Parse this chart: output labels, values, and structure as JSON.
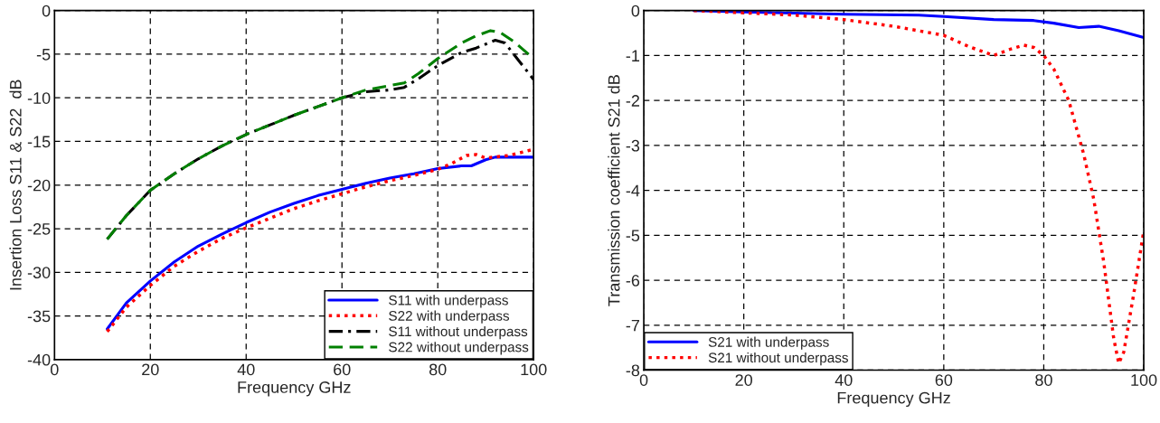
{
  "chart_data": [
    {
      "type": "line",
      "xlabel": "Frequency GHz",
      "ylabel": "Insertion Loss S11 & S22  dB",
      "xlim": [
        0,
        100
      ],
      "ylim": [
        -40,
        0
      ],
      "xticks": [
        0,
        20,
        40,
        60,
        80,
        100
      ],
      "yticks": [
        -40,
        -35,
        -30,
        -25,
        -20,
        -15,
        -10,
        -5,
        0
      ],
      "grid": true,
      "legend": "bottom right",
      "series": [
        {
          "name": "S11 with underpass",
          "color": "#0000ff",
          "line_style": "solid",
          "x": [
            11,
            15,
            20,
            25,
            30,
            35,
            40,
            45,
            50,
            55,
            60,
            65,
            70,
            75,
            80,
            85,
            87,
            90,
            92,
            100
          ],
          "values": [
            -36.5,
            -33.5,
            -31,
            -28.8,
            -27,
            -25.6,
            -24.3,
            -23.1,
            -22.1,
            -21.2,
            -20.5,
            -19.8,
            -19.2,
            -18.7,
            -18.1,
            -17.8,
            -17.8,
            -17.1,
            -16.8,
            -16.8
          ]
        },
        {
          "name": "S22 with underpass",
          "color": "#ff0000",
          "line_style": "dotted",
          "x": [
            11,
            15,
            20,
            25,
            30,
            35,
            40,
            45,
            50,
            55,
            60,
            65,
            70,
            75,
            80,
            83,
            86,
            88,
            90,
            95,
            100
          ],
          "values": [
            -36.8,
            -34,
            -31.5,
            -29.3,
            -27.6,
            -26.1,
            -24.9,
            -23.8,
            -22.7,
            -21.8,
            -21,
            -20.2,
            -19.5,
            -18.9,
            -18.2,
            -17.5,
            -16.6,
            -16.5,
            -16.9,
            -16.6,
            -15.9
          ]
        },
        {
          "name": "S11 without underpass",
          "color": "#000000",
          "line_style": "dashdot",
          "x": [
            11,
            15,
            20,
            25,
            30,
            35,
            40,
            45,
            50,
            55,
            60,
            65,
            70,
            73,
            76,
            80,
            85,
            88,
            92,
            94,
            97,
            100
          ],
          "values": [
            -26.2,
            -23.5,
            -20.6,
            -18.7,
            -17,
            -15.5,
            -14.2,
            -13.1,
            -12,
            -11,
            -10,
            -9.3,
            -9.1,
            -8.8,
            -7.8,
            -6.3,
            -4.8,
            -4.3,
            -3.4,
            -3.7,
            -5.8,
            -7.9
          ]
        },
        {
          "name": "S22 without underpass",
          "color": "#008000",
          "line_style": "dashed",
          "x": [
            11,
            15,
            20,
            25,
            30,
            35,
            40,
            45,
            50,
            55,
            60,
            65,
            70,
            73,
            76,
            80,
            85,
            88,
            91,
            93,
            96,
            100
          ],
          "values": [
            -26.2,
            -23.5,
            -20.6,
            -18.7,
            -17,
            -15.5,
            -14.2,
            -13.1,
            -12,
            -11,
            -10,
            -9.1,
            -8.6,
            -8.3,
            -7.2,
            -5.5,
            -3.7,
            -2.9,
            -2.3,
            -2.5,
            -3.6,
            -5.5
          ]
        }
      ]
    },
    {
      "type": "line",
      "xlabel": "Frequency GHz",
      "ylabel": "Transmission coefficient S21 dB",
      "xlim": [
        0,
        100
      ],
      "ylim": [
        -8,
        0
      ],
      "xticks": [
        0,
        20,
        40,
        60,
        80,
        100
      ],
      "yticks": [
        -8,
        -7,
        -6,
        -5,
        -4,
        -3,
        -2,
        -1,
        0
      ],
      "grid": true,
      "legend": "bottom left",
      "series": [
        {
          "name": "S21 with underpass",
          "color": "#0000ff",
          "line_style": "solid",
          "x": [
            10,
            20,
            40,
            55,
            60,
            70,
            78,
            82,
            87,
            91,
            95,
            100
          ],
          "values": [
            0,
            -0.03,
            -0.08,
            -0.1,
            -0.13,
            -0.2,
            -0.22,
            -0.28,
            -0.38,
            -0.35,
            -0.45,
            -0.6
          ]
        },
        {
          "name": "S21 without underpass",
          "color": "#ff0000",
          "line_style": "dotted",
          "x": [
            10,
            20,
            30,
            40,
            50,
            60,
            65,
            70,
            73,
            76,
            78,
            80,
            82,
            85,
            88,
            90,
            92,
            94,
            95,
            96,
            98,
            100
          ],
          "values": [
            0,
            -0.05,
            -0.1,
            -0.2,
            -0.35,
            -0.55,
            -0.8,
            -1,
            -0.87,
            -0.77,
            -0.82,
            -1,
            -1.3,
            -2,
            -3.2,
            -4.2,
            -5.6,
            -7.3,
            -7.85,
            -7.6,
            -6.3,
            -4.9
          ]
        }
      ]
    }
  ]
}
